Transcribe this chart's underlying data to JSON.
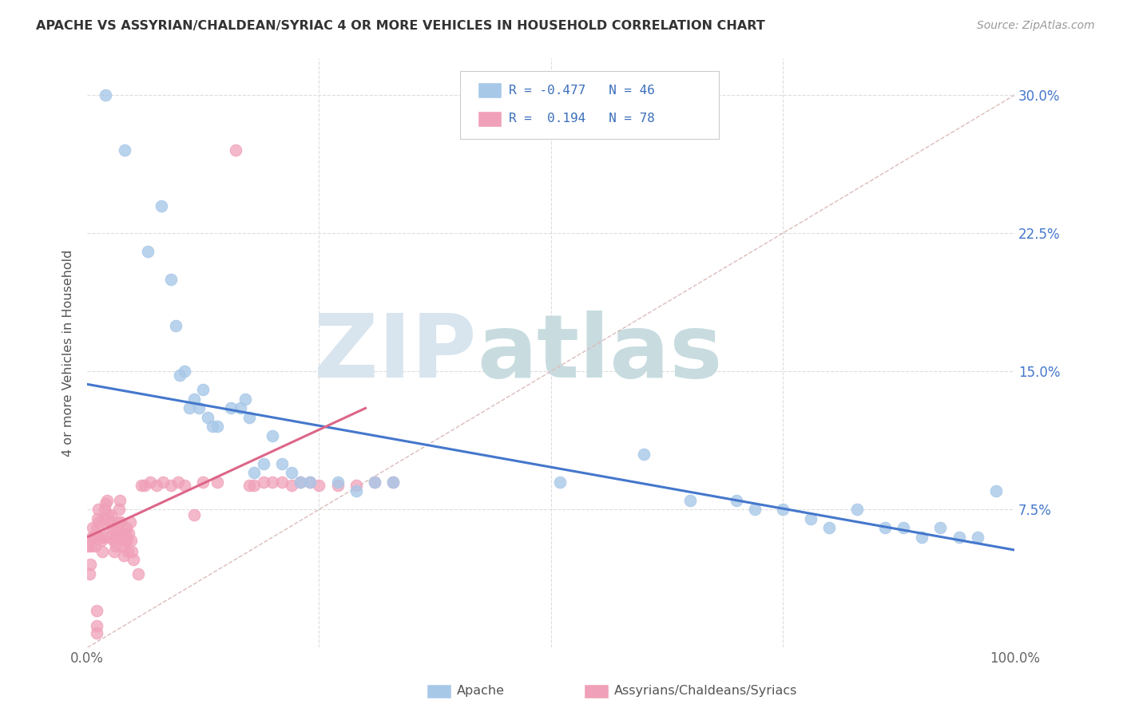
{
  "title": "APACHE VS ASSYRIAN/CHALDEAN/SYRIAC 4 OR MORE VEHICLES IN HOUSEHOLD CORRELATION CHART",
  "source": "Source: ZipAtlas.com",
  "ylabel": "4 or more Vehicles in Household",
  "xlim": [
    0,
    1.0
  ],
  "ylim": [
    0,
    0.32
  ],
  "xticks": [
    0.0,
    0.25,
    0.5,
    0.75,
    1.0
  ],
  "xticklabels": [
    "0.0%",
    "",
    "",
    "",
    "100.0%"
  ],
  "yticks": [
    0.0,
    0.075,
    0.15,
    0.225,
    0.3
  ],
  "yticklabels_right": [
    "",
    "7.5%",
    "15.0%",
    "22.5%",
    "30.0%"
  ],
  "blue_color": "#A8C8E8",
  "pink_color": "#F0A0B8",
  "blue_line_color": "#4477CC",
  "pink_line_color": "#DD6688",
  "diag_color": "#DDBBBB",
  "blue_scatter_x": [
    0.02,
    0.04,
    0.065,
    0.08,
    0.09,
    0.095,
    0.1,
    0.105,
    0.11,
    0.115,
    0.12,
    0.125,
    0.13,
    0.135,
    0.14,
    0.155,
    0.165,
    0.17,
    0.175,
    0.18,
    0.19,
    0.2,
    0.21,
    0.22,
    0.23,
    0.24,
    0.27,
    0.29,
    0.31,
    0.33,
    0.51,
    0.6,
    0.65,
    0.7,
    0.72,
    0.75,
    0.78,
    0.8,
    0.83,
    0.86,
    0.88,
    0.9,
    0.92,
    0.94,
    0.96,
    0.98
  ],
  "blue_scatter_y": [
    0.3,
    0.27,
    0.215,
    0.24,
    0.2,
    0.175,
    0.148,
    0.15,
    0.13,
    0.135,
    0.13,
    0.14,
    0.125,
    0.12,
    0.12,
    0.13,
    0.13,
    0.135,
    0.125,
    0.095,
    0.1,
    0.115,
    0.1,
    0.095,
    0.09,
    0.09,
    0.09,
    0.085,
    0.09,
    0.09,
    0.09,
    0.105,
    0.08,
    0.08,
    0.075,
    0.075,
    0.07,
    0.065,
    0.075,
    0.065,
    0.065,
    0.06,
    0.065,
    0.06,
    0.06,
    0.085
  ],
  "pink_scatter_x": [
    0.001,
    0.002,
    0.003,
    0.004,
    0.005,
    0.006,
    0.007,
    0.008,
    0.009,
    0.01,
    0.011,
    0.012,
    0.013,
    0.014,
    0.015,
    0.016,
    0.017,
    0.018,
    0.019,
    0.02,
    0.021,
    0.022,
    0.023,
    0.024,
    0.025,
    0.026,
    0.027,
    0.028,
    0.029,
    0.03,
    0.031,
    0.032,
    0.033,
    0.034,
    0.035,
    0.036,
    0.037,
    0.038,
    0.039,
    0.04,
    0.041,
    0.042,
    0.043,
    0.044,
    0.045,
    0.046,
    0.047,
    0.048,
    0.05,
    0.055,
    0.058,
    0.062,
    0.068,
    0.075,
    0.082,
    0.09,
    0.098,
    0.105,
    0.115,
    0.125,
    0.14,
    0.16,
    0.175,
    0.19,
    0.21,
    0.23,
    0.25,
    0.27,
    0.29,
    0.31,
    0.33,
    0.18,
    0.2,
    0.22,
    0.24,
    0.01,
    0.01,
    0.01
  ],
  "pink_scatter_y": [
    0.055,
    0.04,
    0.045,
    0.055,
    0.06,
    0.065,
    0.06,
    0.055,
    0.06,
    0.065,
    0.07,
    0.075,
    0.068,
    0.06,
    0.058,
    0.052,
    0.06,
    0.07,
    0.075,
    0.078,
    0.08,
    0.072,
    0.065,
    0.06,
    0.068,
    0.072,
    0.065,
    0.058,
    0.052,
    0.06,
    0.055,
    0.062,
    0.068,
    0.075,
    0.08,
    0.068,
    0.062,
    0.055,
    0.05,
    0.058,
    0.062,
    0.065,
    0.058,
    0.052,
    0.062,
    0.068,
    0.058,
    0.052,
    0.048,
    0.04,
    0.088,
    0.088,
    0.09,
    0.088,
    0.09,
    0.088,
    0.09,
    0.088,
    0.072,
    0.09,
    0.09,
    0.27,
    0.088,
    0.09,
    0.09,
    0.09,
    0.088,
    0.088,
    0.088,
    0.09,
    0.09,
    0.088,
    0.09,
    0.088,
    0.09,
    0.02,
    0.012,
    0.008
  ],
  "blue_line_x0": 0.0,
  "blue_line_x1": 1.0,
  "blue_line_y0": 0.143,
  "blue_line_y1": 0.053,
  "pink_line_x0": 0.0,
  "pink_line_x1": 0.3,
  "pink_line_y0": 0.06,
  "pink_line_y1": 0.13
}
